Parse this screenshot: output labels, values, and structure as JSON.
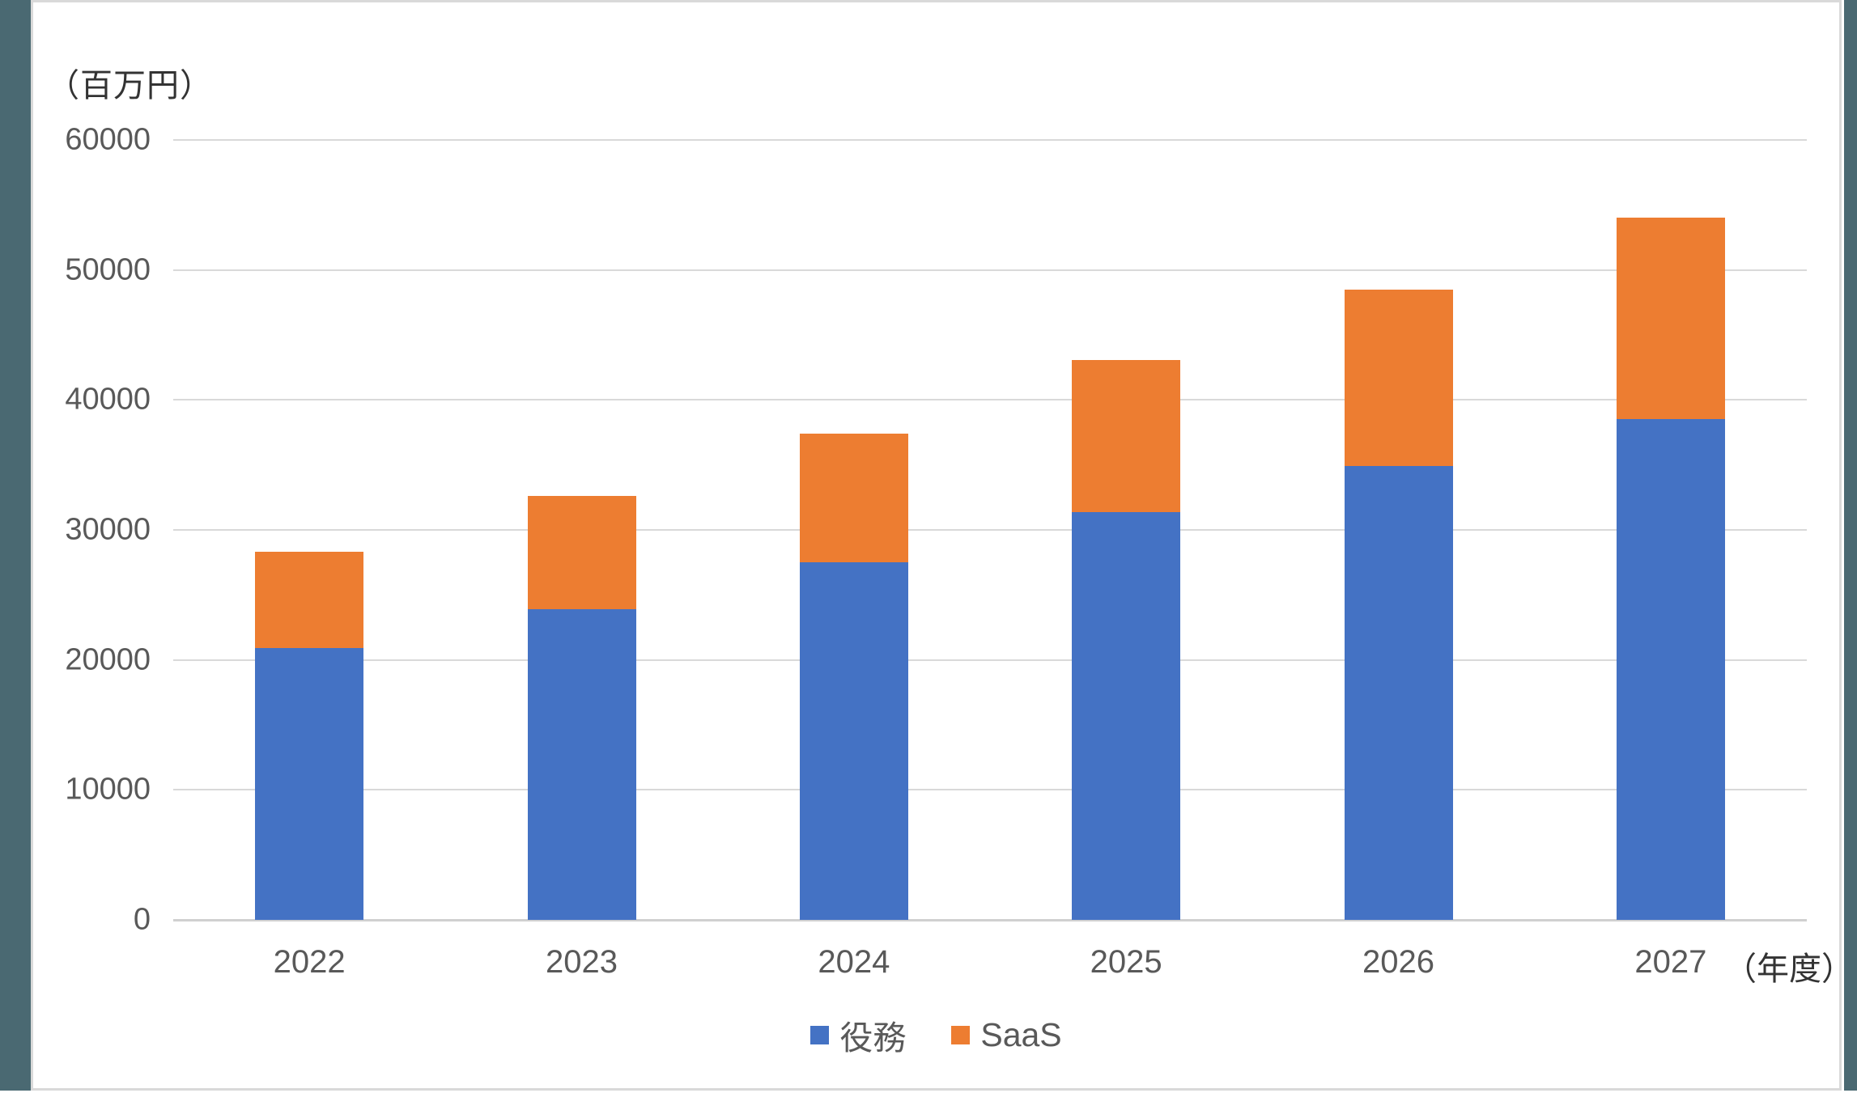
{
  "page": {
    "edge_strip_color": "#4A6972",
    "card_background": "#FFFFFF",
    "card_border_color": "#D9D9D9"
  },
  "chart_data": {
    "type": "bar",
    "stacked": true,
    "title": "",
    "unit_label": "（百万円）",
    "x_axis_suffix_label": "（年度）",
    "categories": [
      "2022",
      "2023",
      "2024",
      "2025",
      "2026",
      "2027"
    ],
    "series": [
      {
        "name": "役務",
        "color": "#4472C4",
        "values": [
          20900,
          23900,
          27500,
          31400,
          34900,
          38500
        ]
      },
      {
        "name": "SaaS",
        "color": "#ED7D31",
        "values": [
          7400,
          8700,
          9900,
          11700,
          13600,
          15500
        ]
      }
    ],
    "totals": [
      28300,
      32600,
      37400,
      43100,
      48500,
      54000
    ],
    "ylim": [
      0,
      60000
    ],
    "yticks": [
      0,
      10000,
      20000,
      30000,
      40000,
      50000,
      60000
    ],
    "grid": true,
    "gridline_color": "#D9D9D9",
    "axis_line_color": "#D0D0D0",
    "tick_label_color": "#595959",
    "legend_position": "bottom"
  }
}
